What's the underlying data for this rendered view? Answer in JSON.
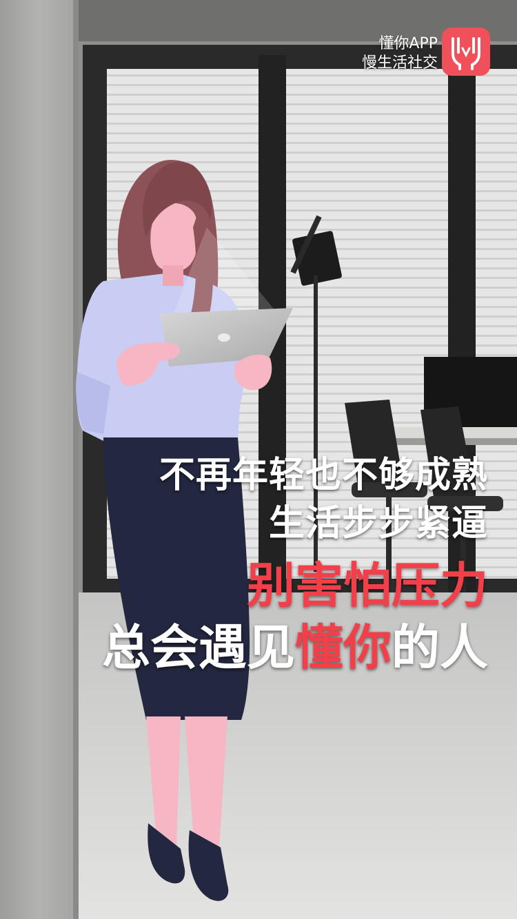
{
  "brand": {
    "app_name": "懂你APP",
    "slogan": "慢生活社交",
    "icon": "app-logo-icon",
    "icon_color": "#f0505a"
  },
  "headline": {
    "line1": "不再年轻也不够成熟",
    "line2": "生活步步紧逼",
    "line3": "别害怕压力",
    "line4_part1": "总会遇见",
    "line4_accent": "懂你",
    "line4_part2": "的人"
  },
  "colors": {
    "accent_red": "#f2404a",
    "text_white": "#ffffff",
    "skirt_navy": "#23273f",
    "shirt_lavender": "#c9cdf4",
    "hair_mauve": "#8d5257",
    "skin_pink": "#f6b6c3"
  }
}
